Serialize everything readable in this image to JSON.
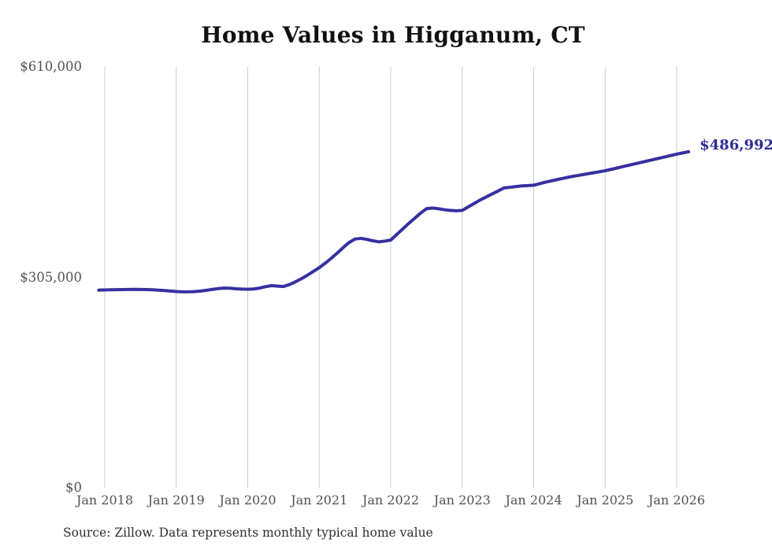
{
  "page": {
    "background_color": "#ffffff"
  },
  "chart_data": {
    "type": "line",
    "title": "Home Values in Higganum, CT",
    "source_note": "Source: Zillow. Data represents monthly typical home value",
    "end_label": "$486,992",
    "latest_value": 486992,
    "x_ticks": [
      "Jan 2018",
      "Jan 2019",
      "Jan 2020",
      "Jan 2021",
      "Jan 2022",
      "Jan 2023",
      "Jan 2024",
      "Jan 2025",
      "Jan 2026"
    ],
    "y_ticks": [
      {
        "label": "$0",
        "value": 0
      },
      {
        "label": "$305,000",
        "value": 305000
      },
      {
        "label": "$610,000",
        "value": 610000
      }
    ],
    "ylim": [
      0,
      610000
    ],
    "grid": "vertical-only",
    "legend": "none",
    "series": [
      {
        "name": "Monthly typical home value",
        "start_month": "2017-12",
        "end_month": "2026-03",
        "values": [
          286500,
          286800,
          287000,
          287200,
          287400,
          287500,
          287600,
          287500,
          287300,
          287000,
          286500,
          285900,
          285200,
          284500,
          284100,
          284000,
          284300,
          285000,
          286200,
          287500,
          288700,
          289400,
          289300,
          288500,
          288000,
          287700,
          288200,
          289500,
          291500,
          293000,
          292300,
          291800,
          294500,
          298500,
          303000,
          308000,
          313500,
          319000,
          325500,
          332500,
          340000,
          348000,
          355500,
          360500,
          361500,
          360000,
          358000,
          356500,
          357500,
          359000,
          367000,
          375000,
          383000,
          390500,
          398000,
          404500,
          405500,
          404500,
          403000,
          402000,
          401500,
          402000,
          407000,
          412000,
          417000,
          421400,
          425800,
          430100,
          434500,
          435500,
          436500,
          437500,
          438000,
          438500,
          440800,
          443000,
          444900,
          446800,
          448600,
          450500,
          452000,
          453500,
          455000,
          456500,
          458000,
          459500,
          461500,
          463500,
          465500,
          467500,
          469500,
          471500,
          473500,
          475500,
          477500,
          479500,
          481500,
          483500,
          485300,
          486992
        ]
      }
    ],
    "colors": {
      "line": "#3531a0",
      "end_label": "#2e2b94",
      "grid": "#cccccc",
      "tick_text": "#4f5256",
      "title_text": "#111111",
      "source_text": "#2f2f2f"
    }
  }
}
